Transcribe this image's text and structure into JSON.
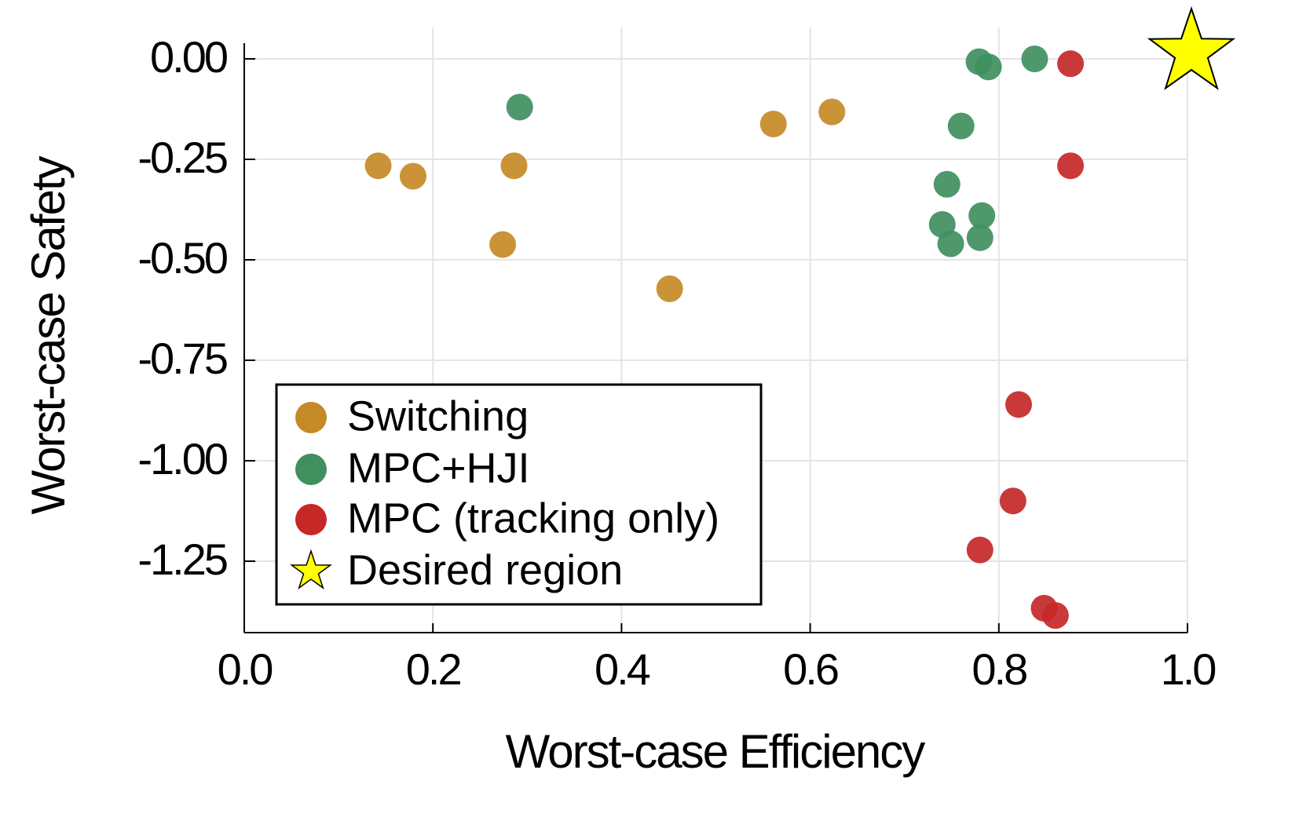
{
  "chart_data": {
    "type": "scatter",
    "xlabel": "Worst-case Efficiency",
    "ylabel": "Worst-case Safety",
    "xlim": [
      0.0,
      1.0
    ],
    "ylim": [
      -1.43,
      0.0
    ],
    "xticks": [
      {
        "value": 0.0,
        "label": "0.0"
      },
      {
        "value": 0.2,
        "label": "0.2"
      },
      {
        "value": 0.4,
        "label": "0.4"
      },
      {
        "value": 0.6,
        "label": "0.6"
      },
      {
        "value": 0.8,
        "label": "0.8"
      },
      {
        "value": 1.0,
        "label": "1.0"
      }
    ],
    "yticks": [
      {
        "value": 0.0,
        "label": "0.00"
      },
      {
        "value": -0.25,
        "label": "-0.25"
      },
      {
        "value": -0.5,
        "label": "-0.50"
      },
      {
        "value": -0.75,
        "label": "-0.75"
      },
      {
        "value": -1.0,
        "label": "-1.00"
      },
      {
        "value": -1.25,
        "label": "-1.25"
      }
    ],
    "grid": true,
    "legend_position": "bottom-left",
    "series": [
      {
        "name": "Switching",
        "color": "#C58A26",
        "marker": "circle",
        "points": [
          {
            "x": 0.142,
            "y": -0.266
          },
          {
            "x": 0.179,
            "y": -0.292
          },
          {
            "x": 0.274,
            "y": -0.462
          },
          {
            "x": 0.286,
            "y": -0.266
          },
          {
            "x": 0.451,
            "y": -0.572
          },
          {
            "x": 0.561,
            "y": -0.162
          },
          {
            "x": 0.623,
            "y": -0.132
          }
        ]
      },
      {
        "name": "MPC+HJI",
        "color": "#3F8F5F",
        "marker": "circle",
        "points": [
          {
            "x": 0.292,
            "y": -0.12
          },
          {
            "x": 0.779,
            "y": -0.007
          },
          {
            "x": 0.789,
            "y": -0.02
          },
          {
            "x": 0.838,
            "y": 0.0
          },
          {
            "x": 0.76,
            "y": -0.167
          },
          {
            "x": 0.745,
            "y": -0.312
          },
          {
            "x": 0.74,
            "y": -0.412
          },
          {
            "x": 0.749,
            "y": -0.46
          },
          {
            "x": 0.782,
            "y": -0.39
          },
          {
            "x": 0.78,
            "y": -0.445
          }
        ]
      },
      {
        "name": "MPC (tracking only)",
        "color": "#C62828",
        "marker": "circle",
        "points": [
          {
            "x": 0.876,
            "y": -0.012
          },
          {
            "x": 0.876,
            "y": -0.266
          },
          {
            "x": 0.821,
            "y": -0.86
          },
          {
            "x": 0.815,
            "y": -1.1
          },
          {
            "x": 0.78,
            "y": -1.222
          },
          {
            "x": 0.848,
            "y": -1.367
          },
          {
            "x": 0.86,
            "y": -1.385
          }
        ]
      },
      {
        "name": "Desired region",
        "color": "#FFFF00",
        "marker": "star",
        "points": [
          {
            "x": 1.0,
            "y": 0.0
          }
        ]
      }
    ]
  }
}
